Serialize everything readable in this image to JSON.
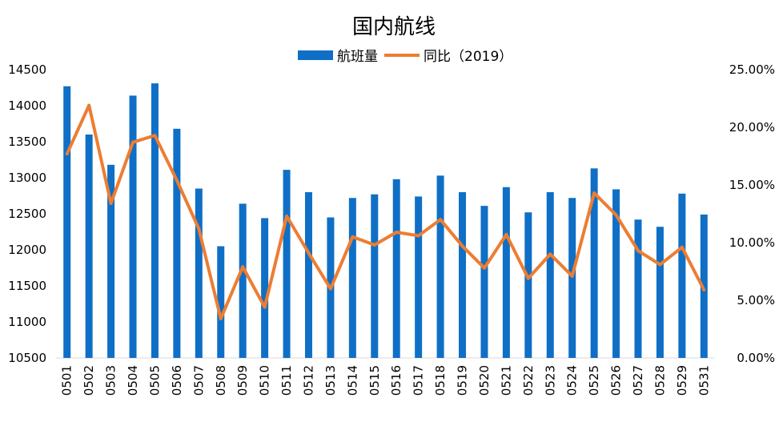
{
  "chart_data": {
    "type": "bar",
    "title": "国内航线",
    "categories": [
      "0501",
      "0502",
      "0503",
      "0504",
      "0505",
      "0506",
      "0507",
      "0508",
      "0509",
      "0510",
      "0511",
      "0512",
      "0513",
      "0514",
      "0515",
      "0516",
      "0517",
      "0518",
      "0519",
      "0520",
      "0521",
      "0522",
      "0523",
      "0524",
      "0525",
      "0526",
      "0527",
      "0528",
      "0529",
      "0531"
    ],
    "series": [
      {
        "name": "航班量",
        "type": "bar",
        "axis": "left",
        "color": "#0F6FC6",
        "values": [
          14270,
          13600,
          13180,
          14140,
          14310,
          13680,
          12850,
          12050,
          12640,
          12440,
          13110,
          12800,
          12450,
          12720,
          12770,
          12980,
          12740,
          13030,
          12800,
          12610,
          12870,
          12520,
          12800,
          12720,
          13130,
          12840,
          12420,
          12320,
          12780,
          12490
        ]
      },
      {
        "name": "同比（2019）",
        "type": "line",
        "axis": "right",
        "color": "#ED7D31",
        "values": [
          0.177,
          0.219,
          0.134,
          0.187,
          0.193,
          0.154,
          0.112,
          0.034,
          0.079,
          0.044,
          0.123,
          0.091,
          0.06,
          0.105,
          0.098,
          0.109,
          0.106,
          0.12,
          0.097,
          0.078,
          0.107,
          0.069,
          0.09,
          0.071,
          0.143,
          0.124,
          0.093,
          0.081,
          0.096,
          0.059
        ]
      }
    ],
    "y_left": {
      "ylim": [
        10500,
        14500
      ],
      "ticks": [
        "10500",
        "11000",
        "11500",
        "12000",
        "12500",
        "13000",
        "13500",
        "14000",
        "14500"
      ]
    },
    "y_right": {
      "ylim": [
        0,
        0.25
      ],
      "ticks": [
        "0.00%",
        "5.00%",
        "10.00%",
        "15.00%",
        "20.00%",
        "25.00%"
      ]
    },
    "legend": {
      "position": "top"
    },
    "grid": false
  }
}
